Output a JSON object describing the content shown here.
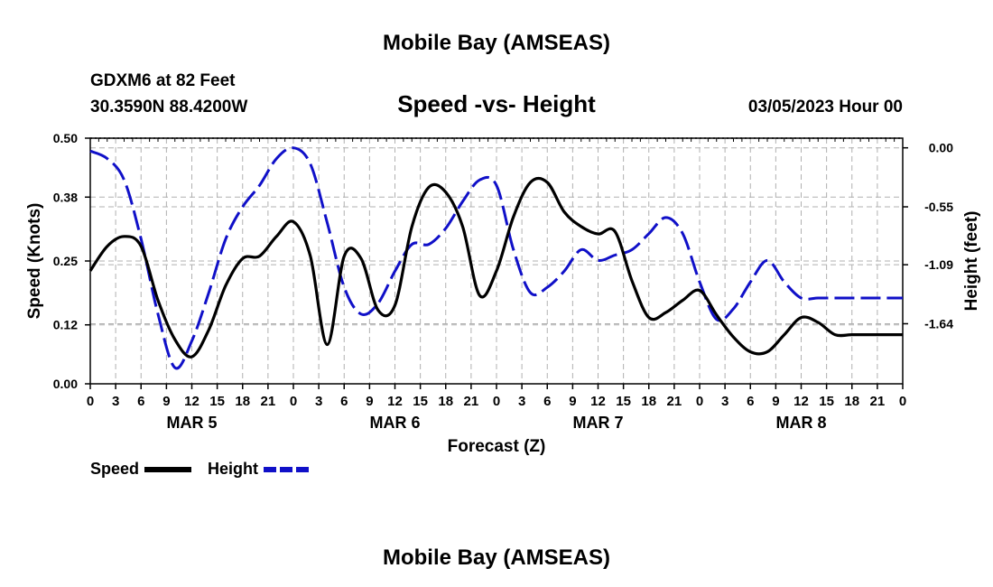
{
  "header": {
    "title": "Mobile Bay (AMSEAS)",
    "station": "GDXM6 at 82 Feet",
    "coords": "30.3590N  88.4200W",
    "subtitle": "Speed -vs- Height",
    "date": "03/05/2023 Hour 00",
    "footer_title": "Mobile Bay (AMSEAS)"
  },
  "colors": {
    "speed": "#000000",
    "height": "#1010c8",
    "grid": "#b0b0b0"
  },
  "chart_data": {
    "type": "line",
    "title": "Speed -vs- Height",
    "xlabel": "Forecast (Z)",
    "ylabel": "Speed (Knots)",
    "y2label": "Height (feet)",
    "xlim": [
      0,
      96
    ],
    "ylim": [
      0,
      0.5
    ],
    "y2lim": [
      -2.2,
      0.09
    ],
    "grid": true,
    "legend_placement": "bottom-left",
    "x_tick_labels": [
      "0",
      "3",
      "6",
      "9",
      "12",
      "15",
      "18",
      "21",
      "0",
      "3",
      "6",
      "9",
      "12",
      "15",
      "18",
      "21",
      "0",
      "3",
      "6",
      "9",
      "12",
      "15",
      "18",
      "21",
      "0",
      "3",
      "6",
      "9",
      "12",
      "15",
      "18",
      "21",
      "0"
    ],
    "y_tick_labels": [
      "0.50",
      "0.38",
      "0.25",
      "0.12",
      "0.00"
    ],
    "y2_tick_labels": [
      "0.00",
      "-0.55",
      "-1.09",
      "-1.64"
    ],
    "day_labels": [
      "MAR 5",
      "MAR 6",
      "MAR 7",
      "MAR 8"
    ],
    "series": [
      {
        "name": "Speed",
        "axis": "left",
        "x": [
          0,
          2,
          4,
          6,
          8,
          10,
          12,
          14,
          16,
          18,
          20,
          22,
          24,
          26,
          28,
          30,
          32,
          34,
          36,
          38,
          40,
          42,
          44,
          46,
          48,
          50,
          52,
          54,
          56,
          58,
          60,
          62,
          64,
          66,
          68,
          70,
          72,
          74,
          76,
          78,
          80,
          82,
          84,
          86,
          88,
          90,
          92,
          94,
          96
        ],
        "values": [
          0.23,
          0.28,
          0.3,
          0.28,
          0.17,
          0.09,
          0.055,
          0.11,
          0.2,
          0.255,
          0.26,
          0.3,
          0.33,
          0.26,
          0.08,
          0.26,
          0.255,
          0.15,
          0.16,
          0.32,
          0.4,
          0.39,
          0.32,
          0.18,
          0.23,
          0.34,
          0.41,
          0.41,
          0.35,
          0.32,
          0.305,
          0.31,
          0.21,
          0.135,
          0.145,
          0.17,
          0.19,
          0.14,
          0.095,
          0.065,
          0.065,
          0.1,
          0.135,
          0.125,
          0.1,
          0.1,
          0.1,
          0.1,
          0.1
        ]
      },
      {
        "name": "Height",
        "axis": "right",
        "x": [
          0,
          2,
          4,
          6,
          8,
          10,
          12,
          14,
          16,
          18,
          20,
          22,
          24,
          26,
          28,
          30,
          32,
          34,
          36,
          38,
          40,
          42,
          44,
          46,
          48,
          50,
          52,
          54,
          56,
          58,
          60,
          62,
          64,
          66,
          68,
          70,
          72,
          74,
          76,
          78,
          80,
          82,
          84,
          86,
          88,
          90,
          92,
          94,
          96
        ],
        "values": [
          -0.03,
          -0.1,
          -0.3,
          -0.85,
          -1.55,
          -2.05,
          -1.8,
          -1.35,
          -0.85,
          -0.55,
          -0.35,
          -0.1,
          0.0,
          -0.15,
          -0.7,
          -1.3,
          -1.55,
          -1.45,
          -1.15,
          -0.9,
          -0.9,
          -0.75,
          -0.5,
          -0.3,
          -0.35,
          -0.95,
          -1.35,
          -1.3,
          -1.15,
          -0.95,
          -1.05,
          -1.0,
          -0.95,
          -0.8,
          -0.65,
          -0.8,
          -1.25,
          -1.6,
          -1.5,
          -1.25,
          -1.05,
          -1.25,
          -1.4,
          -1.4,
          -1.4,
          -1.4,
          -1.4,
          -1.4,
          -1.4
        ]
      }
    ]
  },
  "legend": {
    "speed_label": "Speed",
    "height_label": "Height"
  }
}
